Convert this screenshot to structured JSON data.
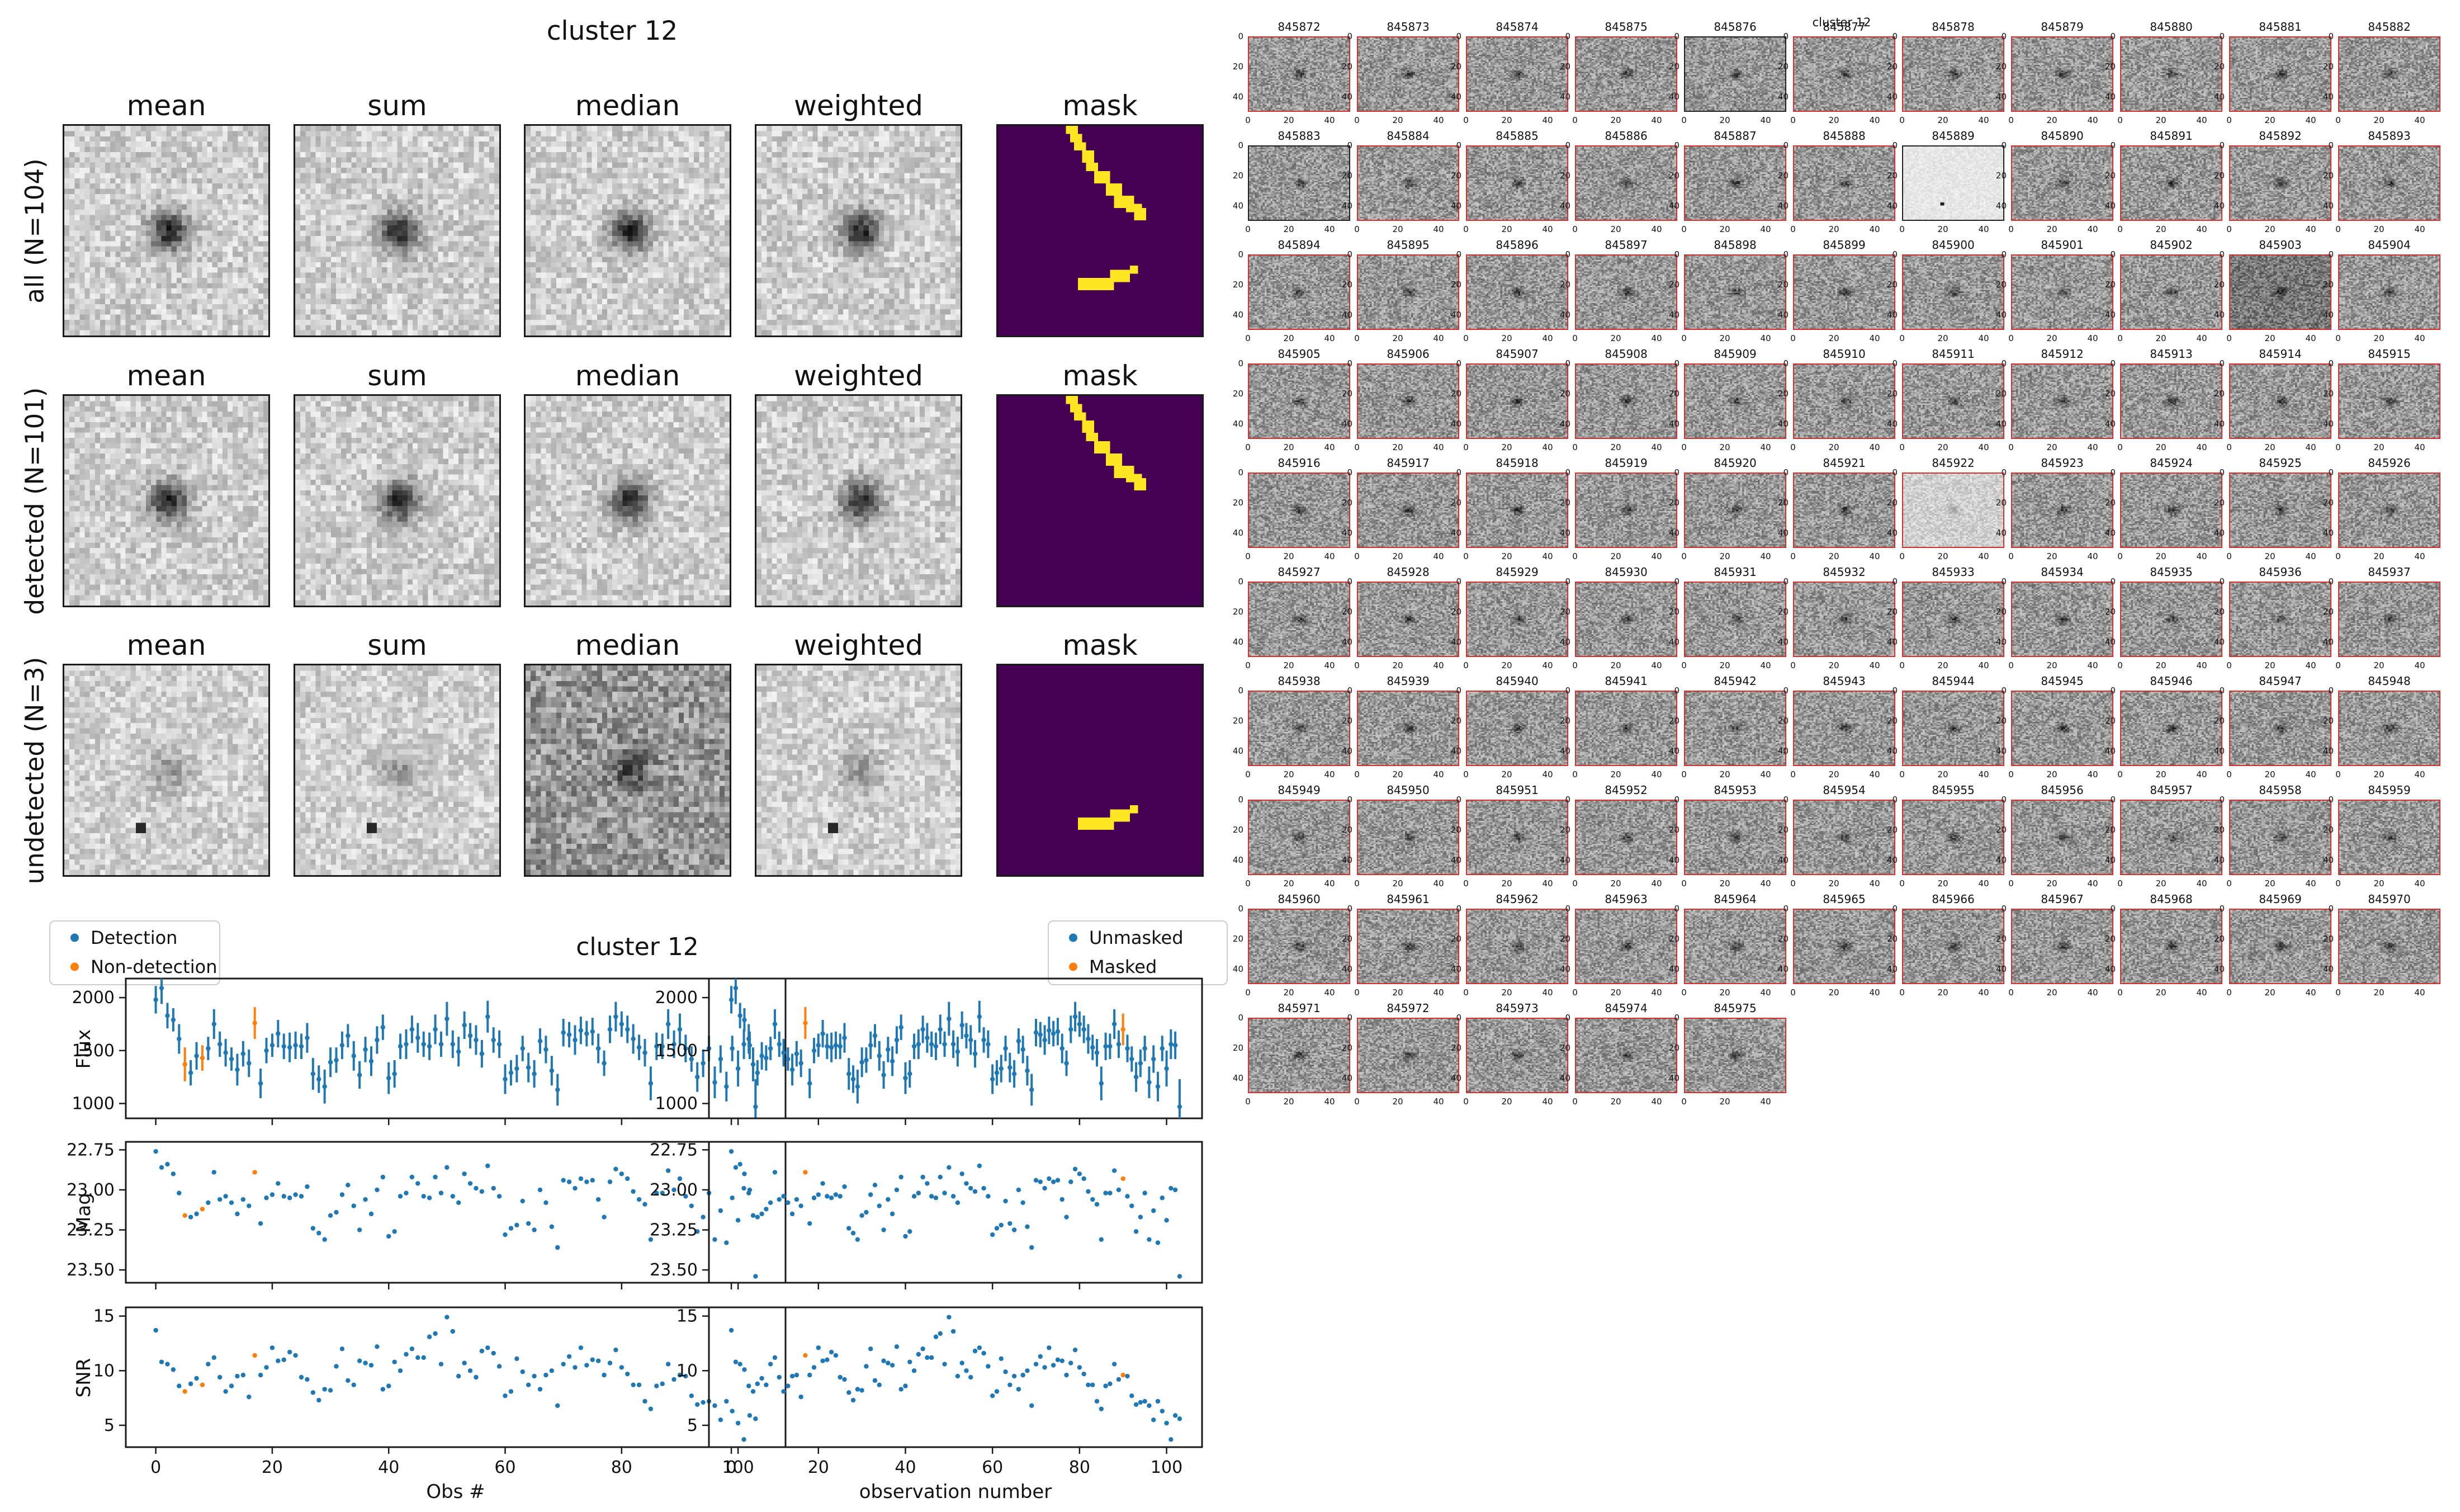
{
  "colors": {
    "detection_blue": "#1f77b4",
    "nondetection_orange": "#ff7f0e",
    "mask_purple": "#440154",
    "mask_yellow": "#fde725",
    "stamp_border_red": "#d62f2f",
    "stamp_border_black": "#222222",
    "spine": "#1a1a1a"
  },
  "stack_figure": {
    "title": "cluster 12",
    "column_headers": [
      "mean",
      "sum",
      "median",
      "weighted",
      "mask"
    ],
    "rows": [
      {
        "label": "all (N=104)",
        "variant": "bright",
        "mask_shapes": [
          "diag",
          "bar"
        ]
      },
      {
        "label": "detected (N=101)",
        "variant": "bright",
        "mask_shapes": [
          "diag"
        ]
      },
      {
        "label": "undetected (N=3)",
        "variant": "faint",
        "mask_shapes": [
          "bar"
        ]
      }
    ],
    "mask_shapes": {
      "diag": [
        [
          17,
          0,
          3,
          2
        ],
        [
          18,
          2,
          3,
          2
        ],
        [
          19,
          4,
          3,
          2
        ],
        [
          21,
          6,
          3,
          3
        ],
        [
          22,
          9,
          3,
          2
        ],
        [
          24,
          11,
          4,
          3
        ],
        [
          27,
          14,
          4,
          3
        ],
        [
          29,
          17,
          5,
          3
        ],
        [
          32,
          19,
          4,
          2
        ],
        [
          34,
          20,
          3,
          3
        ]
      ],
      "bar": [
        [
          20,
          37,
          9,
          3
        ],
        [
          28,
          35,
          5,
          3
        ],
        [
          33,
          34,
          2,
          2
        ]
      ]
    }
  },
  "timeseries": {
    "suptitle": "cluster 12",
    "legend_left": [
      {
        "label": "Detection",
        "color": "#1f77b4"
      },
      {
        "label": "Non-detection",
        "color": "#ff7f0e"
      }
    ],
    "legend_right": [
      {
        "label": "Unmasked",
        "color": "#1f77b4"
      },
      {
        "label": "Masked",
        "color": "#ff7f0e"
      }
    ],
    "xlabel_left": "Obs #",
    "xlabel_right": "observation number",
    "ylabels": [
      "Flux",
      "Mag",
      "SNR"
    ]
  },
  "chart_data": {
    "type": "scatter",
    "title": "cluster 12",
    "x_start": 0,
    "n_obs": 104,
    "x_ticks": [
      0,
      20,
      40,
      60,
      80,
      100
    ],
    "xlim": [
      -5.15,
      108.15
    ],
    "panels": [
      {
        "ylabel": "Flux",
        "ylim": [
          860,
          2180
        ],
        "yticks": [
          1000,
          1500,
          2000
        ],
        "ytick_labels": [
          "1000",
          "1500",
          "2000"
        ],
        "marker": "errorbar"
      },
      {
        "ylabel": "Mag",
        "ylim": [
          23.58,
          22.7
        ],
        "yticks": [
          22.75,
          23.0,
          23.25,
          23.5
        ],
        "ytick_labels": [
          "22.75",
          "23.00",
          "23.25",
          "23.50"
        ],
        "marker": "dot"
      },
      {
        "ylabel": "SNR",
        "ylim": [
          3.0,
          15.8
        ],
        "yticks": [
          5,
          10,
          15
        ],
        "ytick_labels": [
          "5",
          "10",
          "15"
        ],
        "marker": "dot"
      }
    ],
    "left_column_flags": "nondetected_idx",
    "right_column_flags": "masked_idx",
    "nondetected_idx": [
      5,
      8,
      17
    ],
    "masked_idx": [
      17,
      90
    ],
    "flux": [
      1980,
      2090,
      1830,
      1790,
      1610,
      1370,
      1290,
      1450,
      1430,
      1520,
      1750,
      1560,
      1480,
      1420,
      1320,
      1470,
      1380,
      1760,
      1190,
      1500,
      1550,
      1660,
      1540,
      1530,
      1550,
      1540,
      1620,
      1280,
      1230,
      1160,
      1390,
      1410,
      1550,
      1640,
      1450,
      1270,
      1510,
      1400,
      1600,
      1720,
      1240,
      1280,
      1540,
      1560,
      1700,
      1620,
      1560,
      1540,
      1700,
      1560,
      1800,
      1560,
      1490,
      1740,
      1640,
      1600,
      1470,
      1820,
      1600,
      1560,
      1230,
      1290,
      1330,
      1520,
      1340,
      1280,
      1590,
      1510,
      1310,
      1130,
      1670,
      1650,
      1600,
      1690,
      1660,
      1680,
      1520,
      1380,
      1700,
      1820,
      1750,
      1700,
      1610,
      1530,
      1480,
      1190,
      1540,
      1540,
      1750,
      1560,
      1700,
      1520,
      1420,
      1250,
      1380,
      1520,
      1200,
      1420,
      1160,
      1520,
      1330,
      1560,
      1550,
      970
    ],
    "flux_err": [
      130,
      150,
      120,
      110,
      140,
      160,
      120,
      130,
      120,
      110,
      140,
      120,
      130,
      110,
      150,
      120,
      130,
      150,
      140,
      120,
      110,
      130,
      120,
      140,
      130,
      120,
      140,
      150,
      130,
      160,
      140,
      120,
      130,
      110,
      140,
      130,
      120,
      140,
      130,
      120,
      150,
      130,
      120,
      140,
      130,
      140,
      120,
      130,
      140,
      120,
      160,
      130,
      140,
      130,
      120,
      140,
      130,
      150,
      120,
      130,
      140,
      120,
      130,
      120,
      140,
      130,
      120,
      130,
      140,
      150,
      130,
      120,
      140,
      130,
      120,
      130,
      140,
      120,
      130,
      140,
      120,
      130,
      140,
      120,
      130,
      160,
      130,
      120,
      140,
      130,
      150,
      130,
      120,
      140,
      130,
      120,
      150,
      130,
      140,
      120,
      170,
      140,
      130,
      260
    ],
    "mag": [
      22.76,
      22.86,
      22.84,
      22.9,
      23.02,
      23.16,
      23.17,
      23.15,
      23.12,
      23.08,
      22.89,
      23.06,
      23.04,
      23.08,
      23.15,
      23.06,
      23.1,
      22.89,
      23.21,
      23.05,
      23.03,
      22.96,
      23.04,
      23.05,
      23.03,
      23.04,
      22.98,
      23.24,
      23.27,
      23.31,
      23.16,
      23.14,
      23.03,
      22.97,
      23.1,
      23.25,
      23.06,
      23.15,
      23.0,
      22.92,
      23.29,
      23.26,
      23.04,
      23.02,
      22.92,
      22.96,
      23.04,
      23.05,
      22.92,
      23.02,
      22.86,
      23.04,
      23.08,
      22.9,
      22.96,
      22.99,
      23.01,
      22.85,
      22.99,
      23.04,
      23.28,
      23.24,
      23.22,
      23.07,
      23.21,
      23.25,
      23.0,
      23.08,
      23.23,
      23.36,
      22.94,
      22.95,
      22.99,
      22.93,
      22.95,
      22.94,
      23.06,
      23.17,
      22.95,
      22.87,
      22.9,
      22.93,
      23.01,
      23.06,
      23.09,
      23.31,
      23.02,
      23.02,
      22.88,
      23.0,
      22.93,
      23.04,
      23.1,
      23.26,
      23.17,
      23.02,
      23.31,
      23.13,
      23.33,
      23.05,
      23.19,
      22.99,
      23.0,
      23.54
    ],
    "snr": [
      13.7,
      10.8,
      10.6,
      10.1,
      8.6,
      8.1,
      8.8,
      9.3,
      8.7,
      10.6,
      11.2,
      9.4,
      8.1,
      8.6,
      9.5,
      9.6,
      7.6,
      11.4,
      9.6,
      10.3,
      12.1,
      10.9,
      11.0,
      11.7,
      11.4,
      9.4,
      9.2,
      8.0,
      7.3,
      8.3,
      8.2,
      10.4,
      12.0,
      9.1,
      8.7,
      10.9,
      10.7,
      10.5,
      12.2,
      8.3,
      8.6,
      10.8,
      10.0,
      11.5,
      12.0,
      11.2,
      11.2,
      13.1,
      13.4,
      10.6,
      14.9,
      13.6,
      9.5,
      10.7,
      10.0,
      9.4,
      11.8,
      12.1,
      11.6,
      10.4,
      7.7,
      8.1,
      11.1,
      9.9,
      8.7,
      9.5,
      8.3,
      9.6,
      10.0,
      6.8,
      10.6,
      11.3,
      10.3,
      12.1,
      10.5,
      11.0,
      10.9,
      9.6,
      10.7,
      11.9,
      10.3,
      9.7,
      8.7,
      8.7,
      7.2,
      6.5,
      8.6,
      8.8,
      10.6,
      9.2,
      9.6,
      9.5,
      7.7,
      6.9,
      7.1,
      7.2,
      6.8,
      5.5,
      7.2,
      6.3,
      5.2,
      3.7,
      5.9,
      5.6
    ]
  },
  "stamp_grid": {
    "title": "cluster 12",
    "columns": 11,
    "x_tick_labels": [
      "0",
      "20",
      "40"
    ],
    "y_tick_labels": [
      "0",
      "20",
      "40"
    ],
    "ids": [
      "845872",
      "845873",
      "845874",
      "845875",
      "845876",
      "845877",
      "845878",
      "845879",
      "845880",
      "845881",
      "845882",
      "845883",
      "845884",
      "845885",
      "845886",
      "845887",
      "845888",
      "845889",
      "845890",
      "845891",
      "845892",
      "845893",
      "845894",
      "845895",
      "845896",
      "845897",
      "845898",
      "845899",
      "845900",
      "845901",
      "845902",
      "845903",
      "845904",
      "845905",
      "845906",
      "845907",
      "845908",
      "845909",
      "845910",
      "845911",
      "845912",
      "845913",
      "845914",
      "845915",
      "845916",
      "845917",
      "845918",
      "845919",
      "845920",
      "845921",
      "845922",
      "845923",
      "845924",
      "845925",
      "845926",
      "845927",
      "845928",
      "845929",
      "845930",
      "845931",
      "845932",
      "845933",
      "845934",
      "845935",
      "845936",
      "845937",
      "845938",
      "845939",
      "845940",
      "845941",
      "845942",
      "845943",
      "845944",
      "845945",
      "845946",
      "845947",
      "845948",
      "845949",
      "845950",
      "845951",
      "845952",
      "845953",
      "845954",
      "845955",
      "845956",
      "845957",
      "845958",
      "845959",
      "845960",
      "845961",
      "845962",
      "845963",
      "845964",
      "845965",
      "845966",
      "845967",
      "845968",
      "845969",
      "845970",
      "845971",
      "845972",
      "845973",
      "845974",
      "845975"
    ],
    "special": {
      "845876": {
        "border": "black",
        "tone": "std"
      },
      "845883": {
        "border": "black",
        "tone": "std"
      },
      "845889": {
        "border": "black",
        "tone": "xlight",
        "dot": true
      },
      "845903": {
        "border": "red",
        "tone": "dark"
      },
      "845922": {
        "border": "red",
        "tone": "light"
      }
    }
  }
}
